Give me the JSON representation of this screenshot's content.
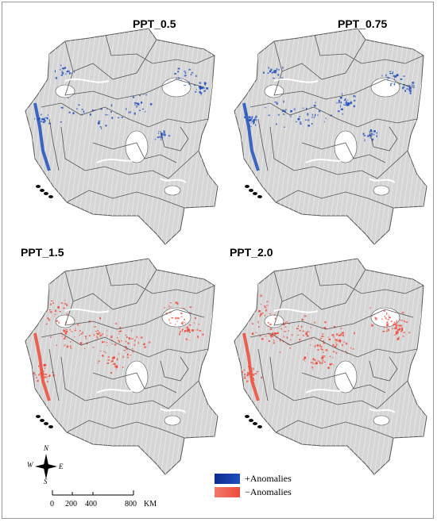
{
  "panels": [
    {
      "id": "ppt-0-5",
      "title": "PPT_0.5",
      "anomaly": "positive"
    },
    {
      "id": "ppt-0-75",
      "title": "PPT_0.75",
      "anomaly": "positive"
    },
    {
      "id": "ppt-1-5",
      "title": "PPT_1.5",
      "anomaly": "negative"
    },
    {
      "id": "ppt-2-0",
      "title": "PPT_2.0",
      "anomaly": "negative"
    }
  ],
  "legend": {
    "positive_label": "+Anomalies",
    "negative_label": "−Anomalies",
    "positive_color": "#1f4fbf",
    "negative_color": "#ef4a3a"
  },
  "compass": {
    "n": "N",
    "s": "S",
    "e": "E",
    "w": "W"
  },
  "scale": {
    "ticks": [
      "0",
      "200",
      "400",
      "800"
    ],
    "unit": "KM"
  },
  "colors": {
    "land": "#d6d6d6",
    "outline": "#555555",
    "river": "#ffffff"
  }
}
